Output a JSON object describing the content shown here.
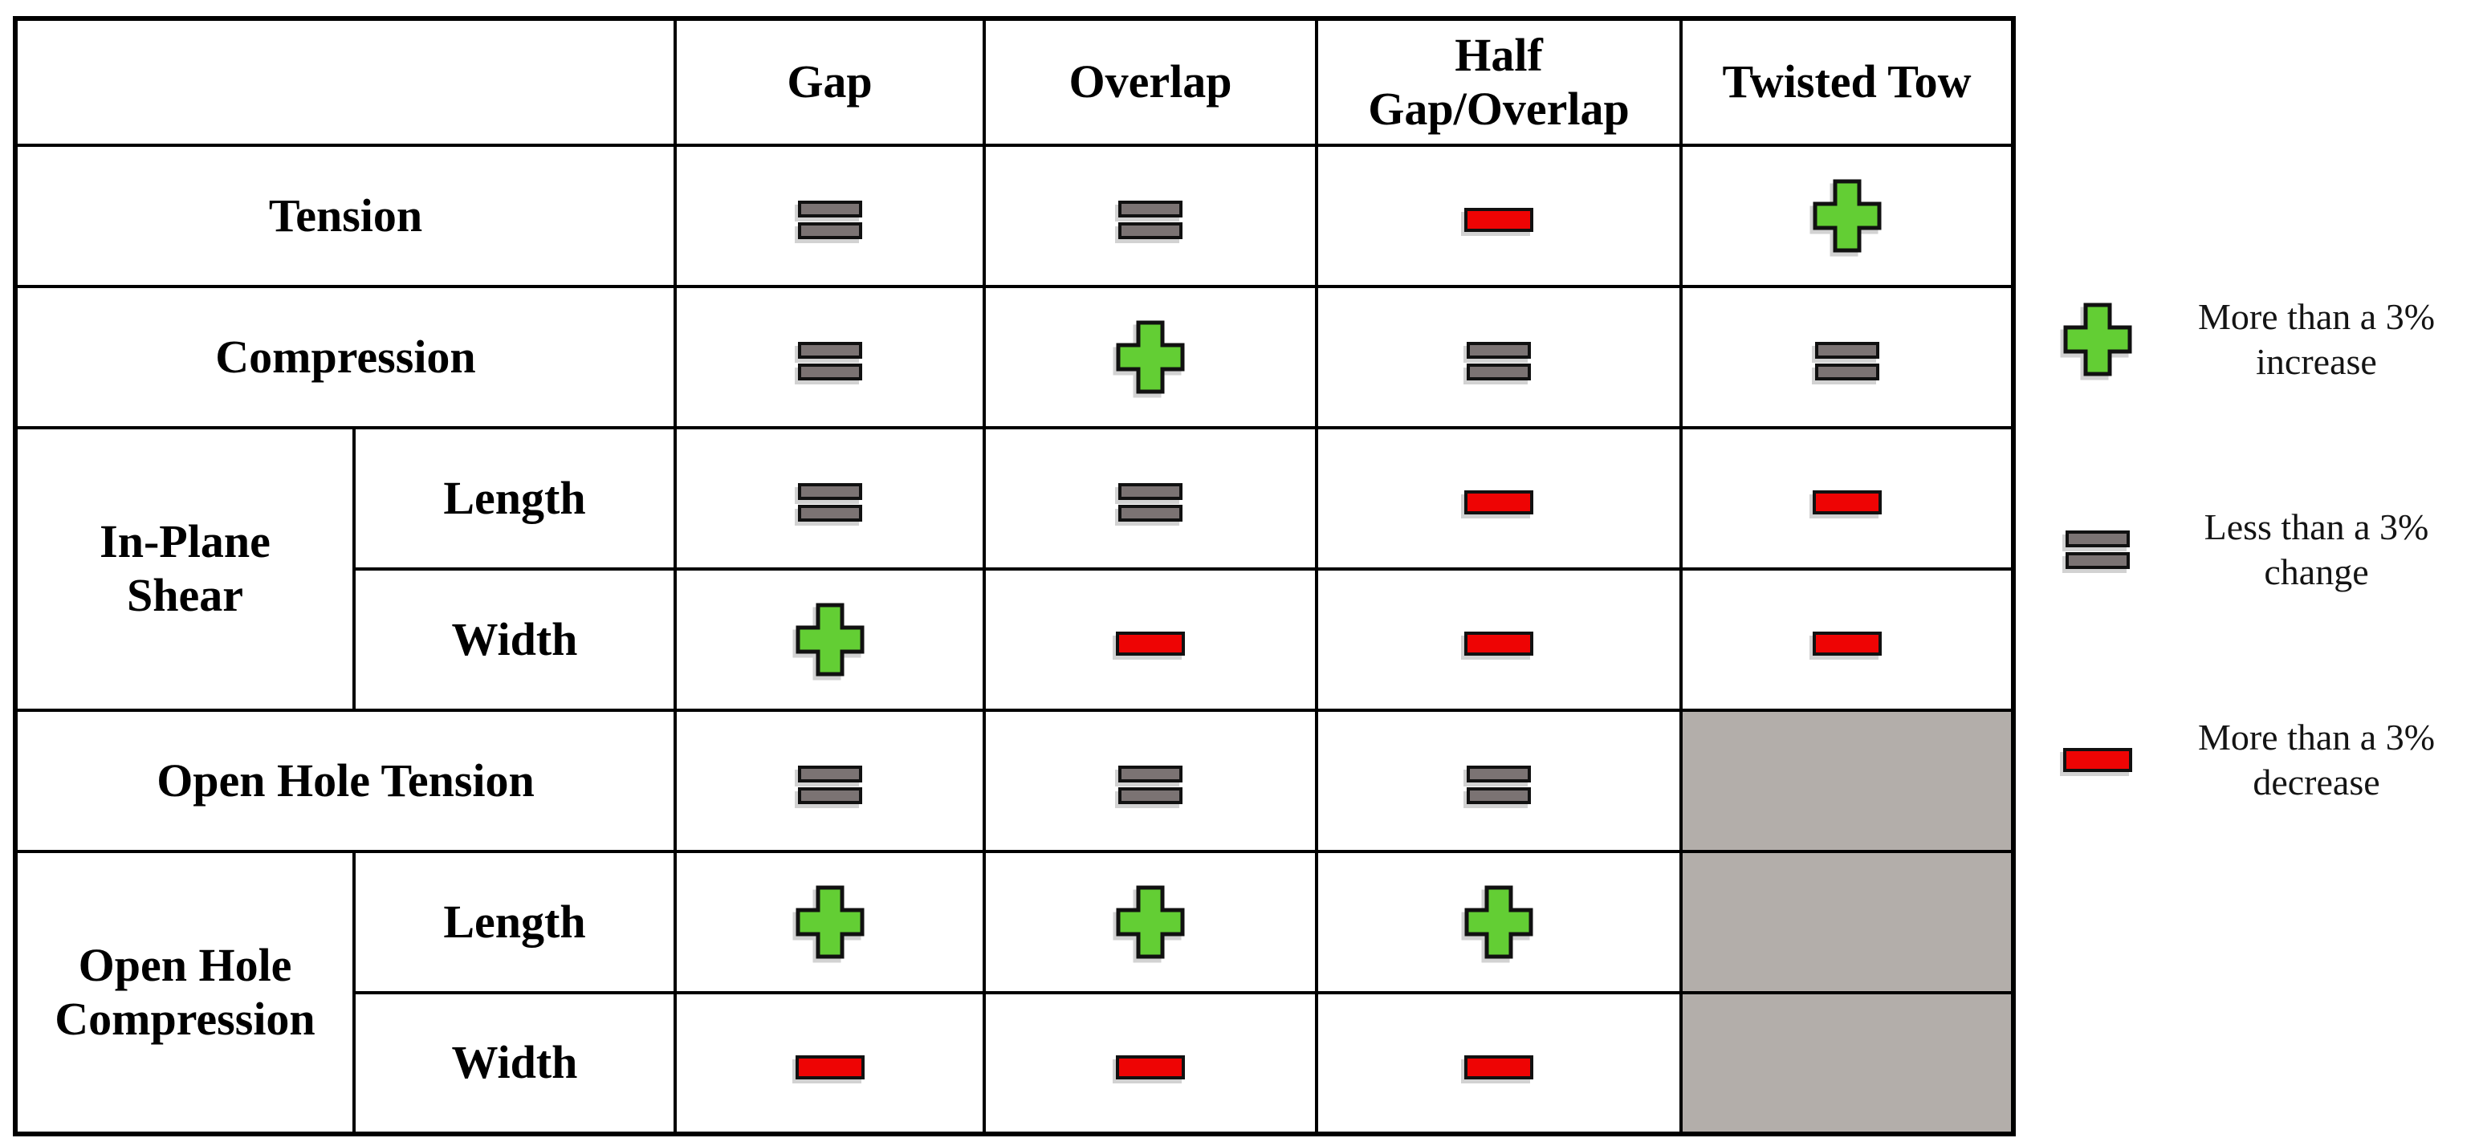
{
  "table": {
    "corner": "",
    "columns": [
      "Gap",
      "Overlap",
      "Half\nGap/Overlap",
      "Twisted Tow"
    ],
    "rows": {
      "tension": {
        "label": "Tension",
        "cells": [
          "no-change",
          "no-change",
          "decrease",
          "increase"
        ]
      },
      "compression": {
        "label": "Compression",
        "cells": [
          "no-change",
          "increase",
          "no-change",
          "no-change"
        ]
      },
      "in_plane_shear": {
        "label": "In-Plane\nShear"
      },
      "ips_length": {
        "label": "Length",
        "cells": [
          "no-change",
          "no-change",
          "decrease",
          "decrease"
        ]
      },
      "ips_width": {
        "label": "Width",
        "cells": [
          "increase",
          "decrease",
          "decrease",
          "decrease"
        ]
      },
      "open_hole_tension": {
        "label": "Open Hole Tension",
        "cells": [
          "no-change",
          "no-change",
          "no-change",
          "na"
        ]
      },
      "open_hole_compression": {
        "label": "Open Hole\nCompression"
      },
      "ohc_length": {
        "label": "Length",
        "cells": [
          "increase",
          "increase",
          "increase",
          "na"
        ]
      },
      "ohc_width": {
        "label": "Width",
        "cells": [
          "decrease",
          "decrease",
          "decrease",
          "na"
        ]
      }
    }
  },
  "legend": {
    "items": [
      {
        "symbol": "increase",
        "label": "More than a 3%\nincrease"
      },
      {
        "symbol": "no-change",
        "label": "Less than a 3%\nchange"
      },
      {
        "symbol": "decrease",
        "label": "More than a 3%\ndecrease"
      }
    ]
  },
  "colors": {
    "increase": "#63CE34",
    "no_change": "#7B7373",
    "decrease": "#EE0404",
    "na_cell": "#B3AEAA",
    "symbol_border": "#111111",
    "table_border": "#000000"
  },
  "chart_data": {
    "type": "table",
    "columns": [
      "Gap",
      "Overlap",
      "Half Gap/Overlap",
      "Twisted Tow"
    ],
    "rows": [
      {
        "group": "Tension",
        "sub": null,
        "values": [
          "no-change",
          "no-change",
          "decrease",
          "increase"
        ]
      },
      {
        "group": "Compression",
        "sub": null,
        "values": [
          "no-change",
          "increase",
          "no-change",
          "no-change"
        ]
      },
      {
        "group": "In-Plane Shear",
        "sub": "Length",
        "values": [
          "no-change",
          "no-change",
          "decrease",
          "decrease"
        ]
      },
      {
        "group": "In-Plane Shear",
        "sub": "Width",
        "values": [
          "increase",
          "decrease",
          "decrease",
          "decrease"
        ]
      },
      {
        "group": "Open Hole Tension",
        "sub": null,
        "values": [
          "no-change",
          "no-change",
          "no-change",
          "na"
        ]
      },
      {
        "group": "Open Hole Compression",
        "sub": "Length",
        "values": [
          "increase",
          "increase",
          "increase",
          "na"
        ]
      },
      {
        "group": "Open Hole Compression",
        "sub": "Width",
        "values": [
          "decrease",
          "decrease",
          "decrease",
          "na"
        ]
      }
    ],
    "value_legend": [
      {
        "value": "increase",
        "symbol": "green-plus",
        "meaning": "More than a 3% increase"
      },
      {
        "value": "no-change",
        "symbol": "grey-equals",
        "meaning": "Less than a 3% change"
      },
      {
        "value": "decrease",
        "symbol": "red-minus",
        "meaning": "More than a 3% decrease"
      },
      {
        "value": "na",
        "symbol": "grey-shaded-cell",
        "meaning": ""
      }
    ],
    "layout": {
      "legend_position": "right",
      "grid": true
    }
  }
}
